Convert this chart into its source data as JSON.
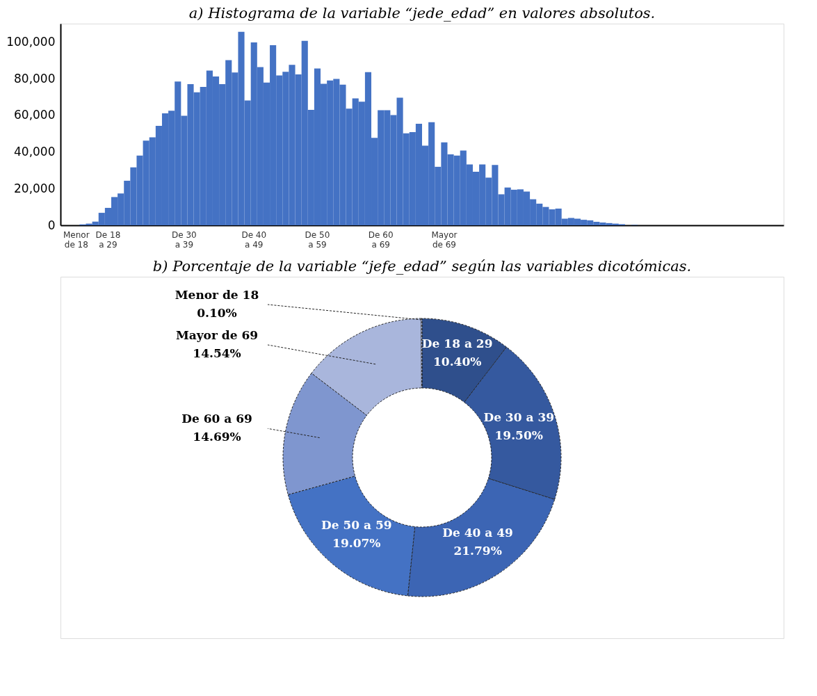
{
  "chart_data": [
    {
      "type": "bar",
      "title": "a) Histograma de la variable “jede_edad” en valores absolutos.",
      "categories": [
        null,
        null,
        "Menor\nde 18",
        null,
        null,
        null,
        null,
        "De 18\na 29",
        null,
        null,
        null,
        null,
        null,
        null,
        null,
        null,
        null,
        null,
        null,
        "De 30\na 39",
        null,
        null,
        null,
        null,
        null,
        null,
        null,
        null,
        null,
        null,
        "De 40\na 49",
        null,
        null,
        null,
        null,
        null,
        null,
        null,
        null,
        null,
        "De 50\na 59",
        null,
        null,
        null,
        null,
        null,
        null,
        null,
        null,
        null,
        "De 60\na 69",
        null,
        null,
        null,
        null,
        null,
        null,
        null,
        null,
        null,
        "Mayor\nde 69",
        null,
        null,
        null,
        null,
        null,
        null,
        null,
        null,
        null,
        null,
        null,
        null,
        null,
        null,
        null,
        null,
        null,
        null,
        null,
        null,
        null,
        null,
        null,
        null,
        null,
        null,
        null,
        null,
        null,
        null,
        null,
        null,
        null,
        null,
        null,
        null,
        null,
        null,
        null,
        null,
        null,
        null,
        null,
        null,
        null,
        null,
        null,
        null,
        null,
        null,
        null,
        null,
        null
      ],
      "values": [
        0,
        0,
        null,
        500,
        900,
        2000,
        6800,
        9500,
        15400,
        17400,
        24300,
        31600,
        38000,
        46200,
        48000,
        54200,
        61100,
        62500,
        78400,
        59700,
        77000,
        72500,
        75500,
        84400,
        81200,
        77000,
        90100,
        83400,
        105500,
        68100,
        99800,
        86300,
        77900,
        98200,
        81700,
        83700,
        87500,
        82300,
        100600,
        63000,
        85500,
        77200,
        79000,
        79800,
        76700,
        63600,
        69200,
        67400,
        83500,
        47700,
        62800,
        62800,
        60100,
        69600,
        50200,
        50800,
        55400,
        43400,
        56200,
        31900,
        45200,
        38700,
        38000,
        40800,
        33200,
        29200,
        33200,
        26000,
        32900,
        16900,
        20600,
        19400,
        19600,
        18400,
        14200,
        11800,
        10000,
        8700,
        9100,
        3600,
        4000,
        3600,
        3000,
        2700,
        1900,
        1500,
        1200,
        900,
        600,
        null,
        200,
        0,
        0,
        0,
        0,
        0,
        0,
        0,
        0,
        0,
        0,
        0,
        0,
        0,
        0,
        0,
        0,
        0,
        0,
        0,
        0,
        0,
        0,
        0
      ],
      "color": "#4472c4",
      "ylim": [
        0,
        110000
      ],
      "yticks": [
        0,
        {
          "value": 20000,
          "label": "20,000"
        },
        {
          "value": 40000,
          "label": "40,000"
        },
        {
          "value": 60000,
          "label": "60,000"
        },
        {
          "value": 80000,
          "label": "80,000"
        },
        {
          "value": 100000,
          "label": "100,000"
        }
      ],
      "grid": false
    },
    {
      "type": "donut",
      "title": "b) Porcentaje de la variable “jefe_edad” según las variables dicotómicas.",
      "categories": [
        "De 18 a 29",
        "De 30 a 39",
        "De 40 a 49",
        "De 50 a 59",
        "De 60 a 69",
        "Mayor de 69",
        "Menor de 18"
      ],
      "values": [
        10.4,
        19.5,
        21.79,
        19.07,
        14.69,
        14.54,
        0.1
      ],
      "value_labels": [
        "10.40%",
        "19.50%",
        "21.79%",
        "19.07%",
        "14.69%",
        "14.54%",
        "0.10%"
      ],
      "colors": [
        "#2f4f8c",
        "#35599f",
        "#3c65b4",
        "#4472c4",
        "#7f96cf",
        "#a9b6dc",
        "#b4c0e2"
      ]
    }
  ]
}
